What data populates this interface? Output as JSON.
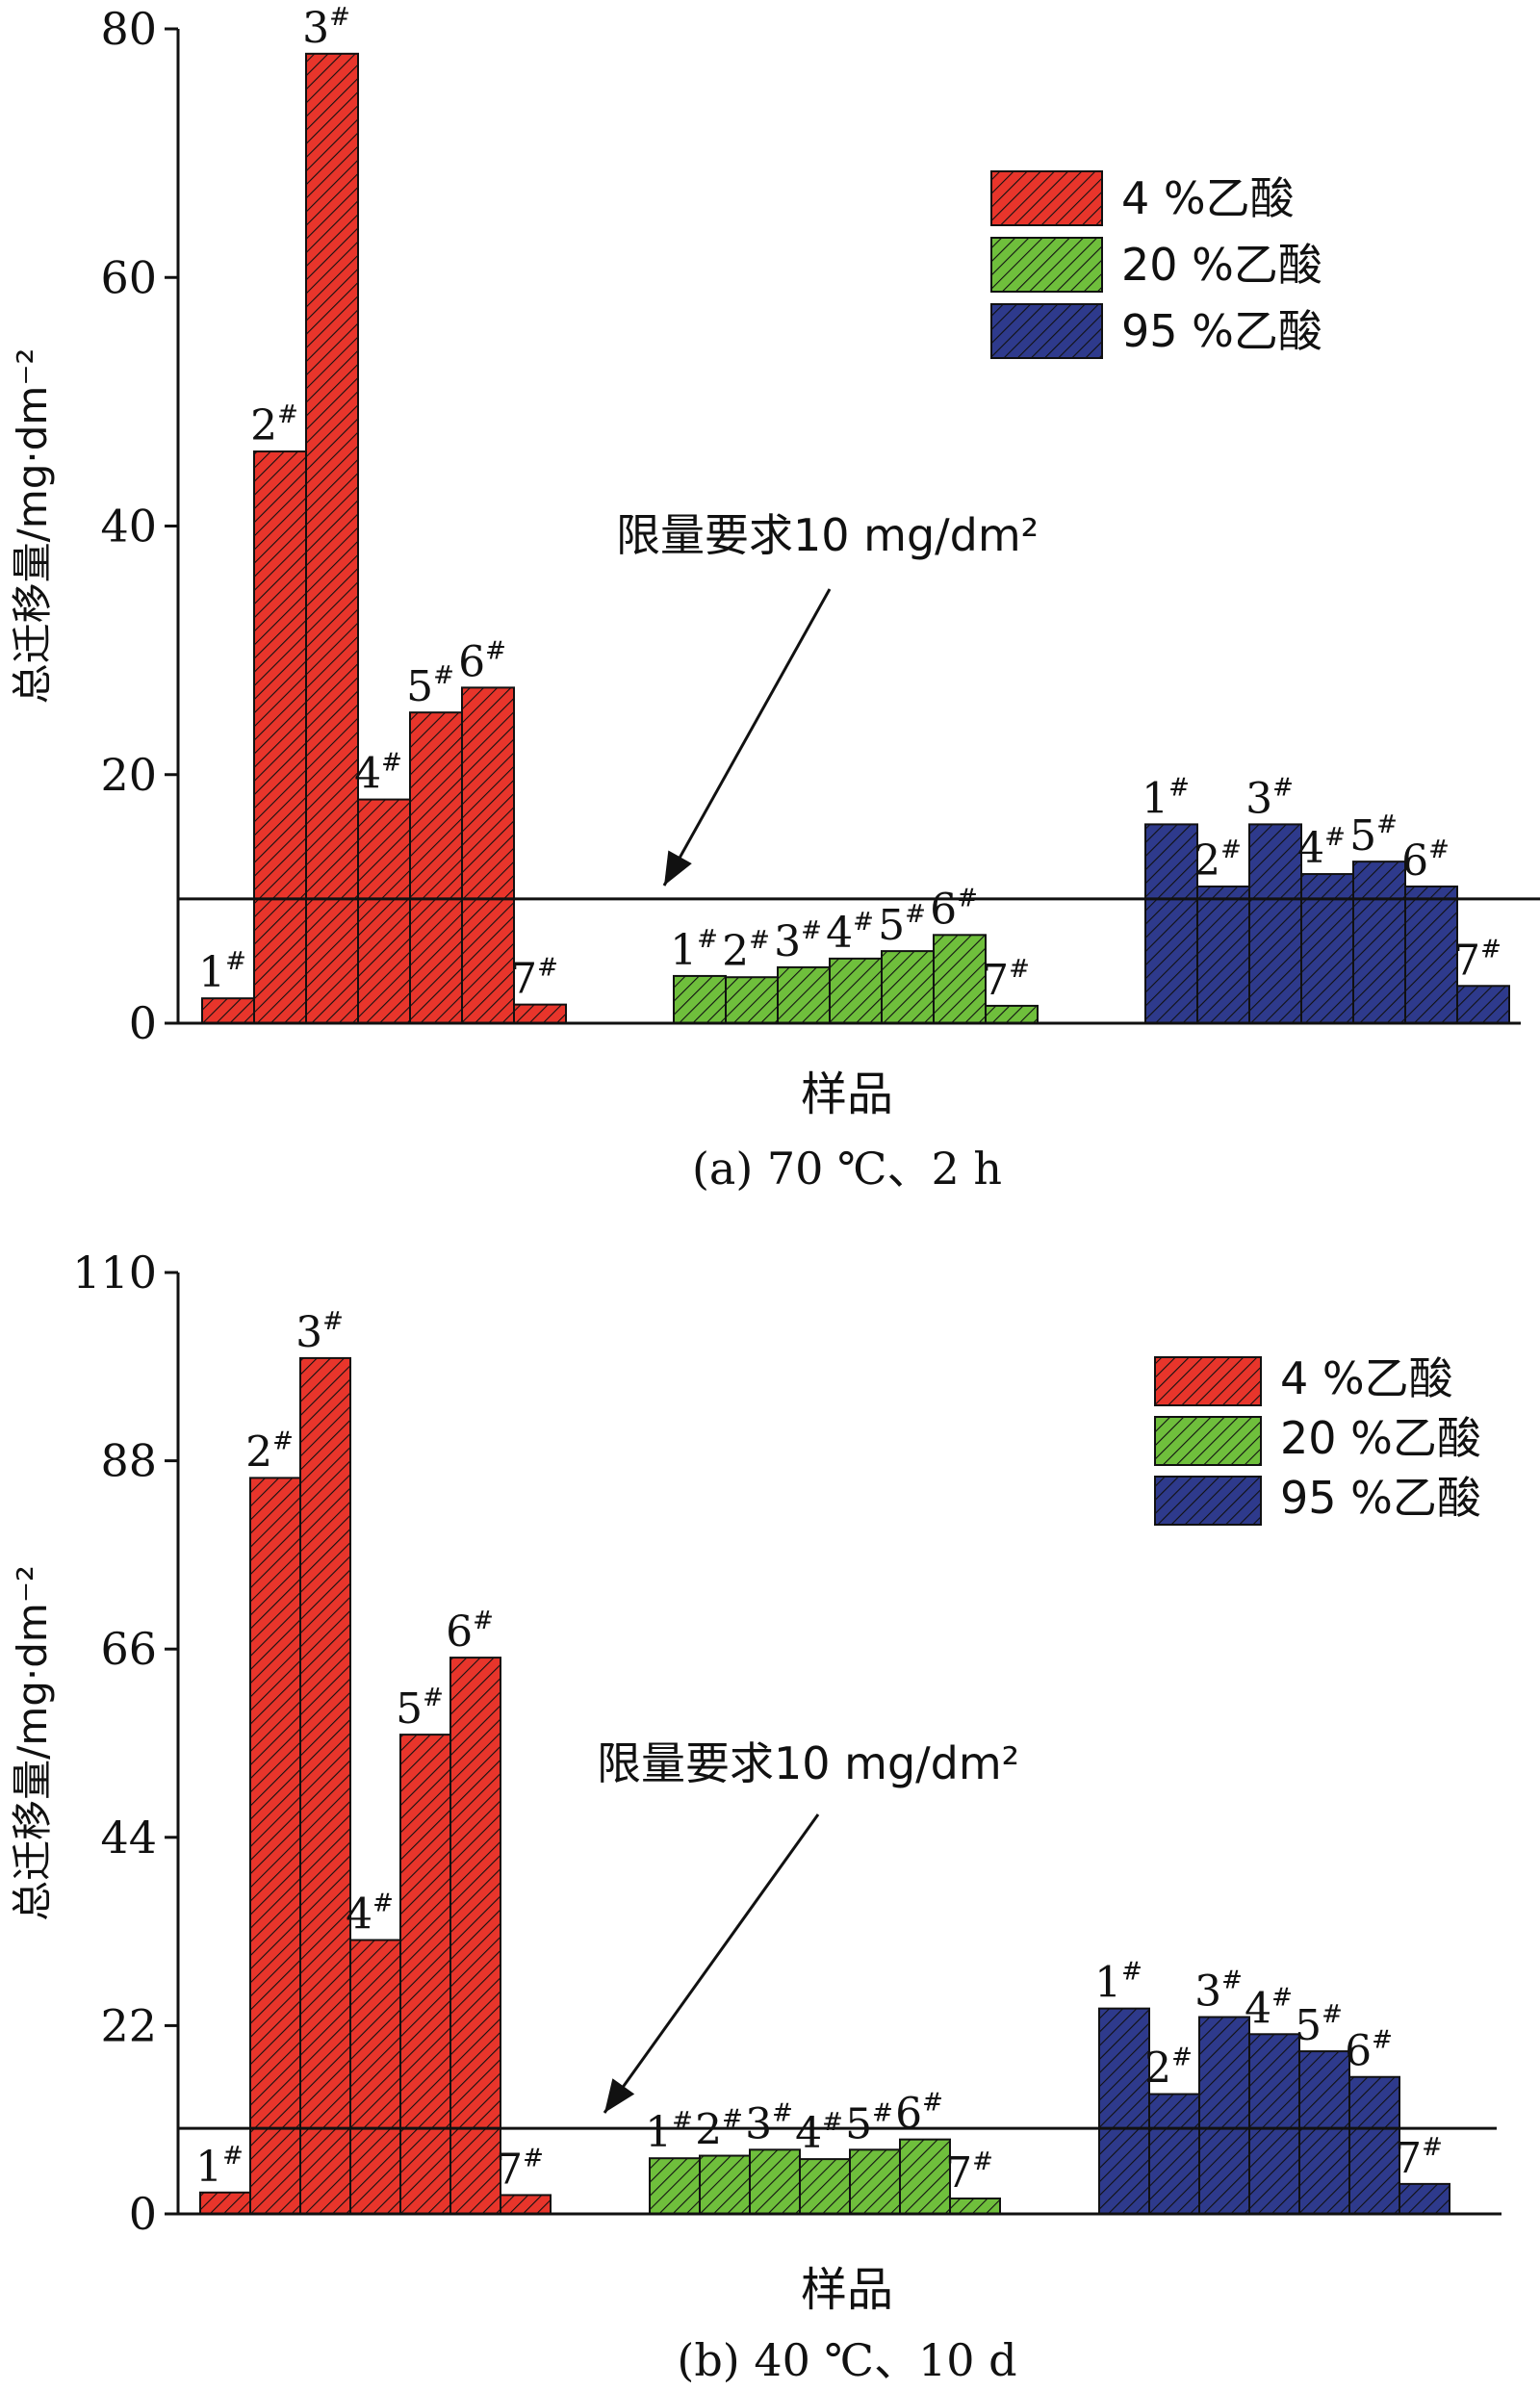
{
  "chart_data": [
    {
      "type": "bar",
      "title": "",
      "caption": "(a) 70 ℃、2 h",
      "xlabel": "样品",
      "ylabel": "总迁移量/mg·dm⁻²",
      "ylim": [
        0,
        80
      ],
      "yticks": [
        0,
        20,
        40,
        60,
        80
      ],
      "limit_line": {
        "value": 10,
        "label": "限量要求10 mg/dm²"
      },
      "series": [
        {
          "name": "4 %乙酸",
          "color": "#e8352b",
          "categories": [
            "1#",
            "2#",
            "3#",
            "4#",
            "5#",
            "6#",
            "7#"
          ],
          "values": [
            2,
            46,
            78,
            18,
            25,
            27,
            1.5
          ]
        },
        {
          "name": "20 %乙酸",
          "color": "#6fbf3c",
          "categories": [
            "1#",
            "2#",
            "3#",
            "4#",
            "5#",
            "6#",
            "7#"
          ],
          "values": [
            3.8,
            3.7,
            4.5,
            5.2,
            5.8,
            7.1,
            1.4
          ]
        },
        {
          "name": "95 %乙酸",
          "color": "#2e3a8c",
          "categories": [
            "1#",
            "2#",
            "3#",
            "4#",
            "5#",
            "6#",
            "7#"
          ],
          "values": [
            16,
            11,
            16,
            12,
            13,
            11,
            3
          ]
        }
      ],
      "legend_position": "top-right",
      "grid": false
    },
    {
      "type": "bar",
      "title": "",
      "caption": "(b) 40 ℃、10 d",
      "xlabel": "样品",
      "ylabel": "总迁移量/mg·dm⁻²",
      "ylim": [
        0,
        110
      ],
      "yticks": [
        0,
        22,
        44,
        66,
        88,
        110
      ],
      "limit_line": {
        "value": 10,
        "label": "限量要求10 mg/dm²"
      },
      "series": [
        {
          "name": "4 %乙酸",
          "color": "#e8352b",
          "categories": [
            "1#",
            "2#",
            "3#",
            "4#",
            "5#",
            "6#",
            "7#"
          ],
          "values": [
            2.5,
            86,
            100,
            32,
            56,
            65,
            2.2
          ]
        },
        {
          "name": "20 %乙酸",
          "color": "#6fbf3c",
          "categories": [
            "1#",
            "2#",
            "3#",
            "4#",
            "5#",
            "6#",
            "7#"
          ],
          "values": [
            6.5,
            6.8,
            7.5,
            6.4,
            7.5,
            8.7,
            1.8
          ]
        },
        {
          "name": "95 %乙酸",
          "color": "#2e3a8c",
          "categories": [
            "1#",
            "2#",
            "3#",
            "4#",
            "5#",
            "6#",
            "7#"
          ],
          "values": [
            24,
            14,
            23,
            21,
            19,
            16,
            3.5
          ]
        }
      ],
      "legend_position": "top-right",
      "grid": false
    }
  ]
}
